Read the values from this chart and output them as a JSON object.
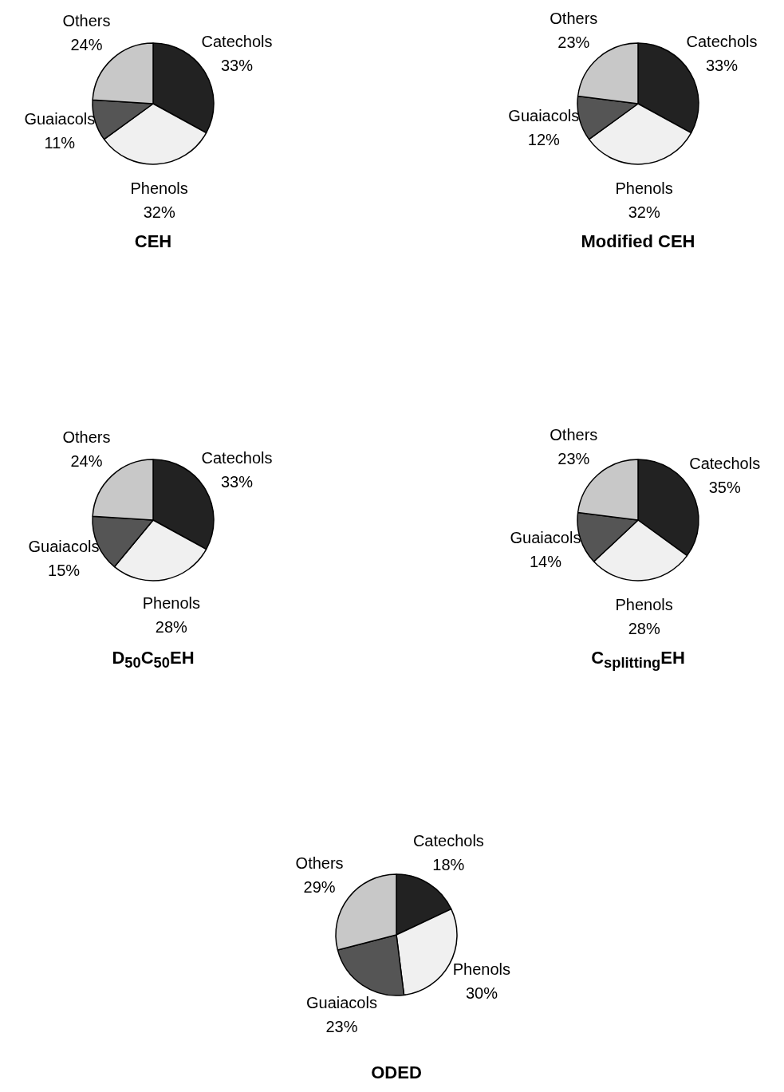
{
  "chart_data": [
    {
      "type": "pie",
      "title": "CEH",
      "categories": [
        "Catechols",
        "Phenols",
        "Guaiacols",
        "Others"
      ],
      "values": [
        33,
        32,
        11,
        24
      ],
      "value_labels": [
        "33%",
        "32%",
        "11%",
        "24%"
      ],
      "colors": [
        "#222222",
        "#f0f0f0",
        "#555555",
        "#c8c8c8"
      ]
    },
    {
      "type": "pie",
      "title": "Modified CEH",
      "categories": [
        "Catechols",
        "Phenols",
        "Guaiacols",
        "Others"
      ],
      "values": [
        33,
        32,
        12,
        23
      ],
      "value_labels": [
        "33%",
        "32%",
        "12%",
        "23%"
      ],
      "colors": [
        "#222222",
        "#f0f0f0",
        "#555555",
        "#c8c8c8"
      ]
    },
    {
      "type": "pie",
      "title": "D$_{50}$C$_{50}$EH",
      "categories": [
        "Catechols",
        "Phenols",
        "Guaiacols",
        "Others"
      ],
      "values": [
        33,
        28,
        15,
        24
      ],
      "value_labels": [
        "33%",
        "28%",
        "15%",
        "24%"
      ],
      "colors": [
        "#222222",
        "#f0f0f0",
        "#555555",
        "#c8c8c8"
      ]
    },
    {
      "type": "pie",
      "title": "C$_{splitting}$EH",
      "categories": [
        "Catechols",
        "Phenols",
        "Guaiacols",
        "Others"
      ],
      "values": [
        35,
        28,
        14,
        23
      ],
      "value_labels": [
        "35%",
        "28%",
        "14%",
        "23%"
      ],
      "colors": [
        "#222222",
        "#f0f0f0",
        "#555555",
        "#c8c8c8"
      ]
    },
    {
      "type": "pie",
      "title": "ODED",
      "categories": [
        "Catechols",
        "Phenols",
        "Guaiacols",
        "Others"
      ],
      "values": [
        18,
        30,
        23,
        29
      ],
      "value_labels": [
        "18%",
        "30%",
        "23%",
        "29%"
      ],
      "colors": [
        "#222222",
        "#f0f0f0",
        "#555555",
        "#c8c8c8"
      ]
    }
  ]
}
